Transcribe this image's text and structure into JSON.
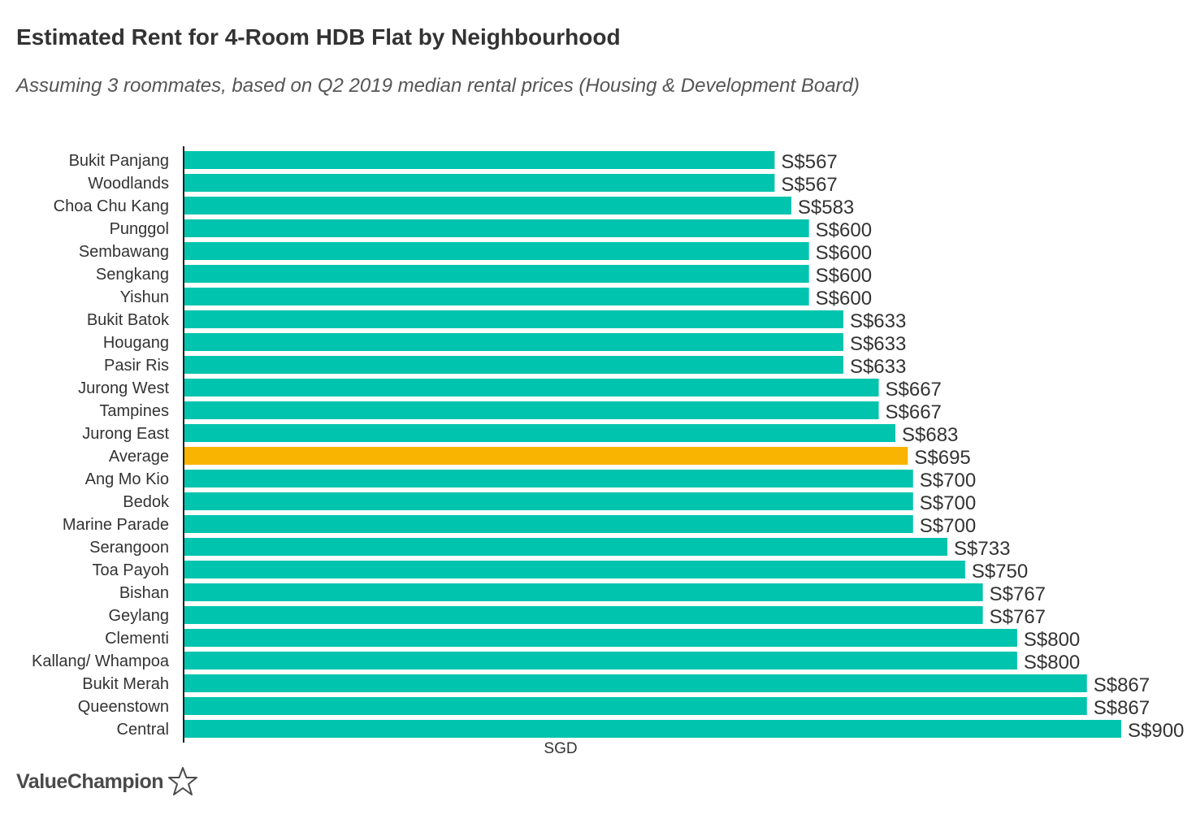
{
  "chart_data": {
    "type": "bar",
    "orientation": "horizontal",
    "title": "Estimated Rent for 4-Room HDB Flat by Neighbourhood",
    "subtitle": "Assuming 3 roommates, based on Q2 2019 median rental prices (Housing & Development Board)",
    "xlabel": "SGD",
    "ylabel": "",
    "xlim": [
      0,
      900
    ],
    "grid": false,
    "legend": "none",
    "label_prefix": "S$",
    "categories": [
      "Bukit Panjang",
      "Woodlands",
      "Choa Chu Kang",
      "Punggol",
      "Sembawang",
      "Sengkang",
      "Yishun",
      "Bukit Batok",
      "Hougang",
      "Pasir Ris",
      "Jurong West",
      "Tampines",
      "Jurong East",
      "Average",
      "Ang Mo Kio",
      "Bedok",
      "Marine Parade",
      "Serangoon",
      "Toa Payoh",
      "Bishan",
      "Geylang",
      "Clementi",
      "Kallang/ Whampoa",
      "Bukit Merah",
      "Queenstown",
      "Central"
    ],
    "values": [
      567,
      567,
      583,
      600,
      600,
      600,
      600,
      633,
      633,
      633,
      667,
      667,
      683,
      695,
      700,
      700,
      700,
      733,
      750,
      767,
      767,
      800,
      800,
      867,
      867,
      900
    ],
    "highlight_category": "Average",
    "colors": {
      "bar": "#00c4ad",
      "highlight": "#f8b400",
      "axis": "#222222",
      "text": "#333333"
    }
  },
  "brand": {
    "name": "ValueChampion",
    "icon": "star-outline-icon"
  }
}
